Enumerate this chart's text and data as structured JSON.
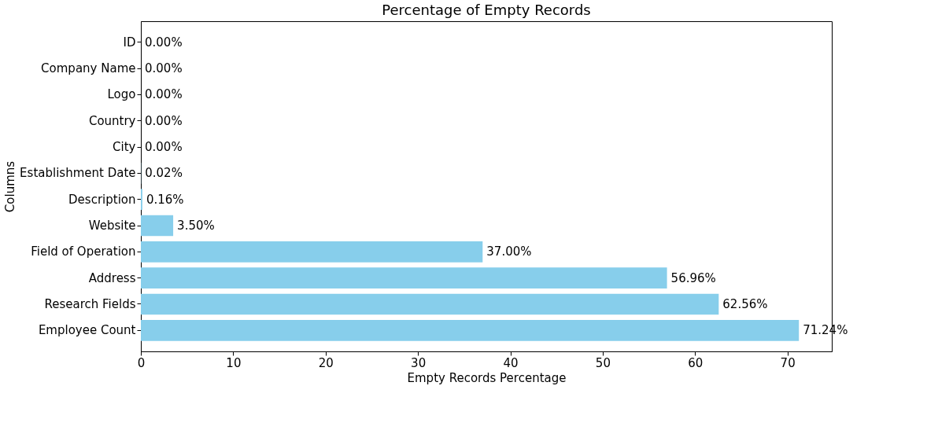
{
  "chart_data": {
    "type": "bar",
    "orientation": "horizontal",
    "title": "Percentage of Empty Records",
    "xlabel": "Empty Records Percentage",
    "ylabel": "Columns",
    "categories": [
      "ID",
      "Company Name",
      "Logo",
      "Country",
      "City",
      "Establishment Date",
      "Description",
      "Website",
      "Field of Operation",
      "Address",
      "Research Fields",
      "Employee Count"
    ],
    "values": [
      0.0,
      0.0,
      0.0,
      0.0,
      0.0,
      0.02,
      0.16,
      3.5,
      37.0,
      56.96,
      62.56,
      71.24
    ],
    "value_labels": [
      "0.00%",
      "0.00%",
      "0.00%",
      "0.00%",
      "0.00%",
      "0.02%",
      "0.16%",
      "3.50%",
      "37.00%",
      "56.96%",
      "62.56%",
      "71.24%"
    ],
    "color": "#87ceeb",
    "xlim": [
      0,
      74.8
    ],
    "xticks": [
      0,
      10,
      20,
      30,
      40,
      50,
      60,
      70
    ],
    "grid": false
  }
}
